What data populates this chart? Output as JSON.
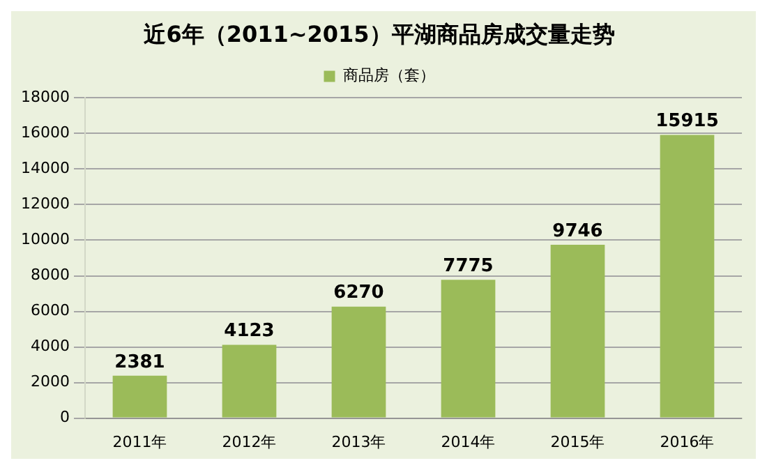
{
  "chart_data": {
    "type": "bar",
    "title": "近6年（2011~2015）平湖商品房成交量走势",
    "categories": [
      "2011年",
      "2012年",
      "2013年",
      "2014年",
      "2015年",
      "2016年"
    ],
    "series": [
      {
        "name": "商品房（套）",
        "color": "#9bbb59",
        "values": [
          2381,
          4123,
          6270,
          7775,
          9746,
          15915
        ]
      }
    ],
    "ylim": [
      0,
      18000
    ],
    "yticks": [
      0,
      2000,
      4000,
      6000,
      8000,
      10000,
      12000,
      14000,
      16000,
      18000
    ],
    "grid": "y",
    "legend": "top",
    "data_labels": true
  }
}
